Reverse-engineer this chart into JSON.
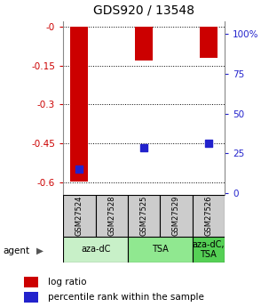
{
  "title": "GDS920 / 13548",
  "samples": [
    "GSM27524",
    "GSM27528",
    "GSM27525",
    "GSM27529",
    "GSM27526"
  ],
  "log_ratios": [
    -0.597,
    0.0,
    -0.13,
    0.0,
    -0.12
  ],
  "percentile_ranks": [
    15,
    0,
    27,
    0,
    30
  ],
  "ylim_left": [
    -0.65,
    0.02
  ],
  "ylim_right": [
    -1.3,
    108
  ],
  "left_yticks": [
    0.0,
    -0.15,
    -0.3,
    -0.45,
    -0.6
  ],
  "right_yticks": [
    0,
    25,
    50,
    75,
    100
  ],
  "left_ytick_labels": [
    "-0",
    "-0.15",
    "-0.3",
    "-0.45",
    "-0.6"
  ],
  "right_ytick_labels": [
    "0",
    "25",
    "50",
    "75",
    "100%"
  ],
  "agent_groups": [
    {
      "label": "aza-dC",
      "start": 0,
      "end": 1,
      "color": "#c8f0c8"
    },
    {
      "label": "TSA",
      "start": 2,
      "end": 3,
      "color": "#90e890"
    },
    {
      "label": "aza-dC,\nTSA",
      "start": 4,
      "end": 4,
      "color": "#55d055"
    }
  ],
  "bar_color": "#cc0000",
  "dot_color": "#2222cc",
  "bar_width": 0.55,
  "dot_size": 28,
  "sample_box_color": "#cccccc",
  "left_tick_color": "#cc0000",
  "right_tick_color": "#2222cc"
}
